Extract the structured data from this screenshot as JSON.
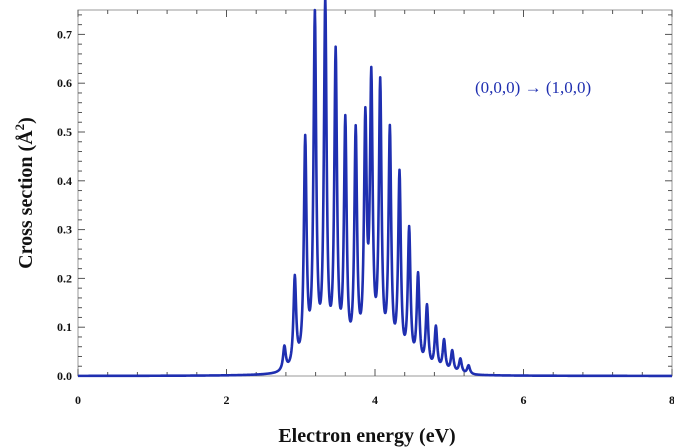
{
  "chart_data": {
    "type": "line",
    "xlabel": "Electron energy (eV)",
    "ylabel_main": "Cross section (Å",
    "ylabel_sup": "2",
    "ylabel_tail": ")",
    "annotation": "(0,0,0) → (1,0,0)",
    "xlim": [
      0,
      8
    ],
    "ylim": [
      0,
      0.75
    ],
    "x_ticks": [
      "0",
      "2",
      "4",
      "6",
      "8"
    ],
    "y_ticks": [
      "0.0",
      "0.1",
      "0.2",
      "0.3",
      "0.4",
      "0.5",
      "0.6",
      "0.7"
    ],
    "x_tick_values": [
      0,
      2,
      4,
      6,
      8
    ],
    "y_tick_values": [
      0.0,
      0.1,
      0.2,
      0.3,
      0.4,
      0.5,
      0.6,
      0.7
    ],
    "grid": false,
    "series": [
      {
        "color": "#1f2fb0",
        "peaks": [
          {
            "x": 2.78,
            "y": 0.05
          },
          {
            "x": 2.92,
            "y": 0.185
          },
          {
            "x": 3.06,
            "y": 0.46
          },
          {
            "x": 3.19,
            "y": 0.71
          },
          {
            "x": 3.33,
            "y": 0.735
          },
          {
            "x": 3.47,
            "y": 0.63
          },
          {
            "x": 3.6,
            "y": 0.49
          },
          {
            "x": 3.74,
            "y": 0.47
          },
          {
            "x": 3.87,
            "y": 0.48
          },
          {
            "x": 3.95,
            "y": 0.565
          },
          {
            "x": 4.07,
            "y": 0.565
          },
          {
            "x": 4.2,
            "y": 0.475
          },
          {
            "x": 4.33,
            "y": 0.39
          },
          {
            "x": 4.46,
            "y": 0.28
          },
          {
            "x": 4.58,
            "y": 0.19
          },
          {
            "x": 4.7,
            "y": 0.13
          },
          {
            "x": 4.82,
            "y": 0.09
          },
          {
            "x": 4.93,
            "y": 0.065
          },
          {
            "x": 5.04,
            "y": 0.045
          },
          {
            "x": 5.15,
            "y": 0.03
          },
          {
            "x": 5.26,
            "y": 0.018
          }
        ]
      }
    ]
  }
}
